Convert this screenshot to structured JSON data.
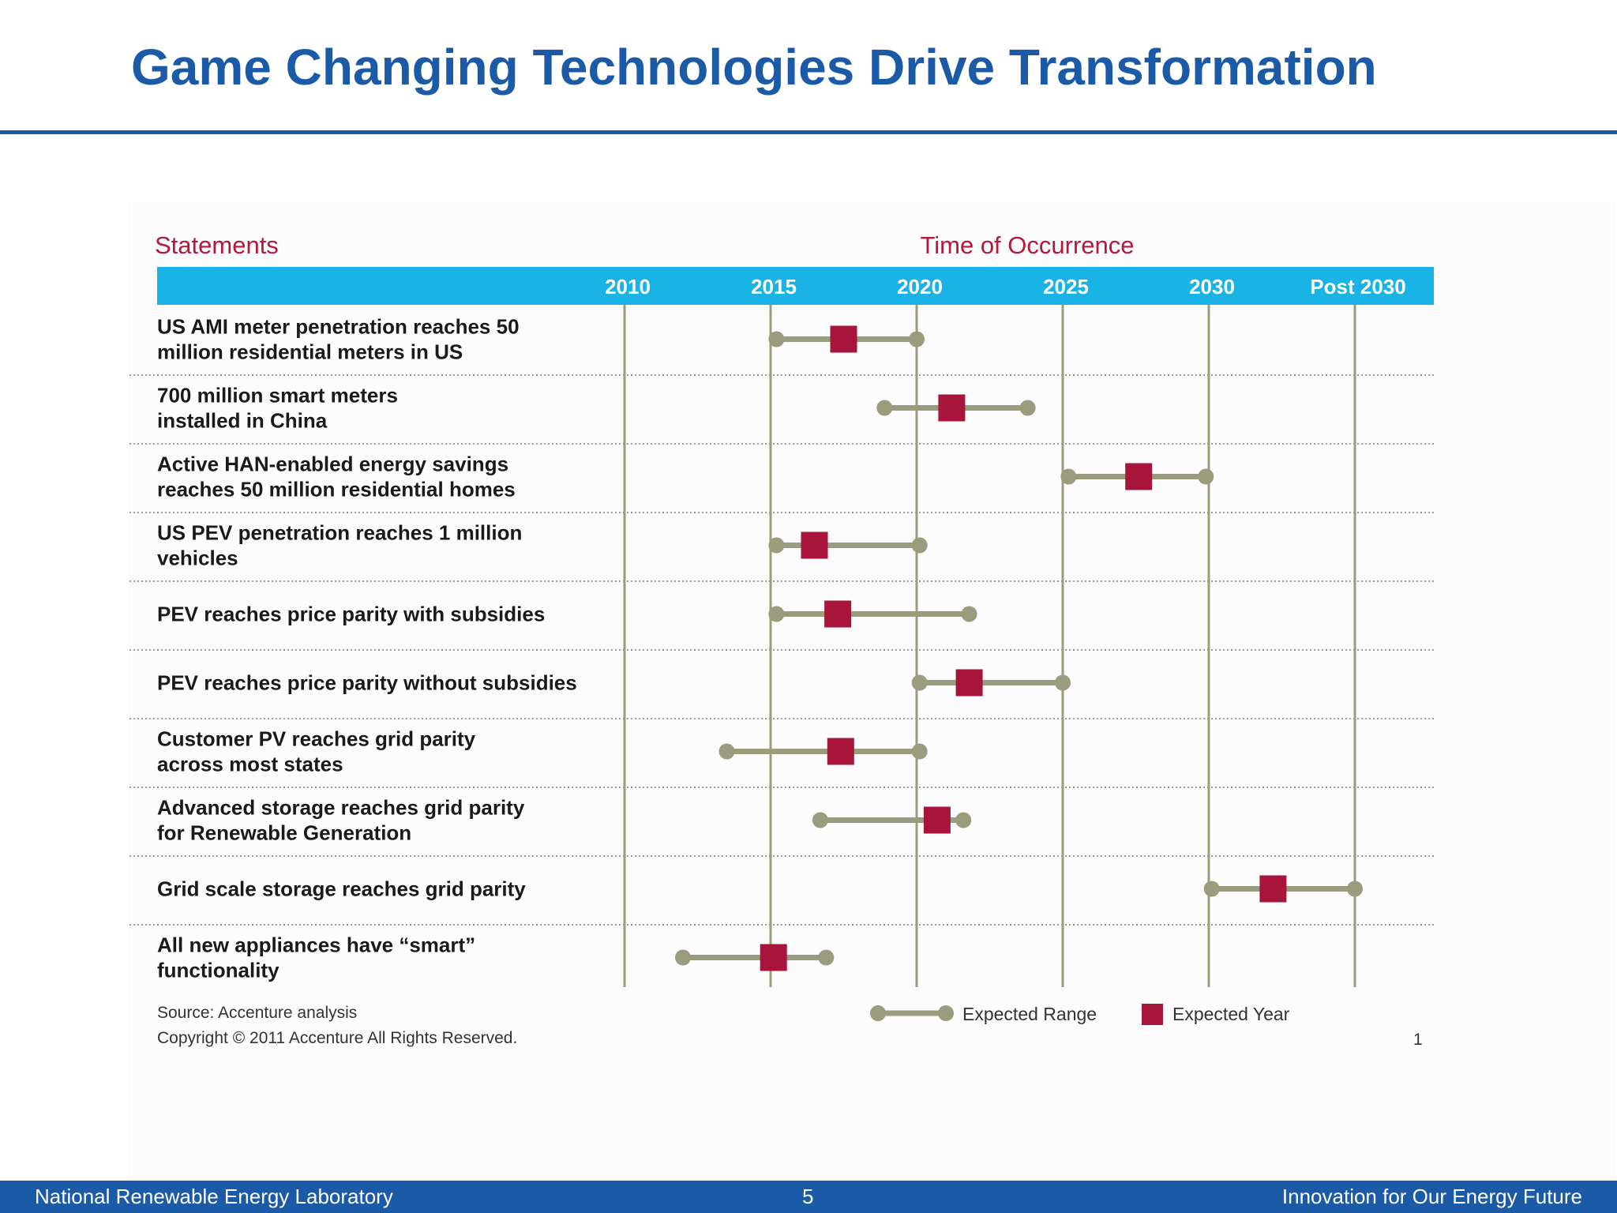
{
  "slide": {
    "title": "Game Changing Technologies Drive Transformation"
  },
  "footer": {
    "left": "National Renewable Energy Laboratory",
    "page": "5",
    "right": "Innovation for Our Energy Future"
  },
  "colors": {
    "title_blue": "#1b5aa6",
    "header_band": "#1ab3e6",
    "heading_red": "#b5173d",
    "range_line": "#9b9b7e",
    "marker_red": "#a8153a"
  },
  "chart_data": {
    "type": "range-timeline",
    "statements_heading": "Statements",
    "time_heading": "Time of Occurrence",
    "columns": [
      "2010",
      "2015",
      "2020",
      "2025",
      "2030",
      "Post 2030"
    ],
    "rows": [
      {
        "label_lines": [
          "US AMI meter penetration reaches 50",
          "million residential meters in US"
        ],
        "range": [
          2015.2,
          2020.0
        ],
        "expected": 2017.5
      },
      {
        "label_lines": [
          "700 million smart meters",
          "installed in China"
        ],
        "range": [
          2018.9,
          2023.8
        ],
        "expected": 2021.2
      },
      {
        "label_lines": [
          "Active HAN-enabled energy savings",
          "reaches 50 million residential homes"
        ],
        "range": [
          2025.2,
          2029.9
        ],
        "expected": 2027.6
      },
      {
        "label_lines": [
          "US PEV penetration reaches 1 million",
          "vehicles"
        ],
        "range": [
          2015.2,
          2020.1
        ],
        "expected": 2016.5
      },
      {
        "label_lines": [
          "PEV reaches price parity with subsidies"
        ],
        "range": [
          2015.2,
          2021.8
        ],
        "expected": 2017.3
      },
      {
        "label_lines": [
          "PEV reaches price parity without subsidies"
        ],
        "range": [
          2020.1,
          2025.0
        ],
        "expected": 2021.8
      },
      {
        "label_lines": [
          "Customer PV reaches grid parity",
          "across most states"
        ],
        "range": [
          2013.5,
          2020.1
        ],
        "expected": 2017.4
      },
      {
        "label_lines": [
          "Advanced storage reaches grid parity",
          "for Renewable Generation"
        ],
        "range": [
          2016.7,
          2021.6
        ],
        "expected": 2020.7
      },
      {
        "label_lines": [
          "Grid scale storage reaches grid parity"
        ],
        "range": [
          2030.1,
          2035.0
        ],
        "expected": 2032.2
      },
      {
        "label_lines": [
          "All new appliances have “smart”",
          "functionality"
        ],
        "range": [
          2012.0,
          2016.9
        ],
        "expected": 2015.1
      }
    ],
    "legend": {
      "range": "Expected Range",
      "year": "Expected Year"
    },
    "source": "Source: Accenture analysis",
    "copyright": "Copyright © 2011 Accenture All Rights Reserved.",
    "figure_number": "1"
  }
}
